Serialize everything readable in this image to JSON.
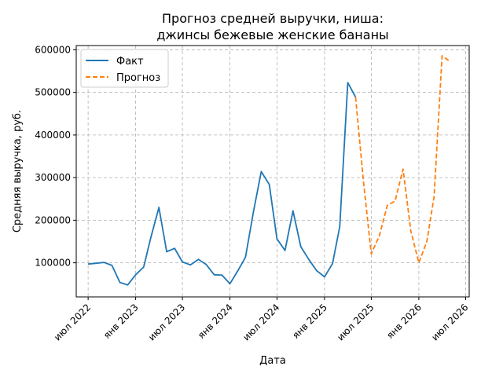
{
  "chart_data": {
    "type": "line",
    "title_line1": "Прогноз средней выручки, ниша:",
    "title_line2": "джинсы бежевые женские бананы",
    "xlabel": "Дата",
    "ylabel": "Средняя выручка, руб.",
    "ylim": [
      20000,
      610000
    ],
    "xlim": [
      "2022-05-16",
      "2026-07-15"
    ],
    "grid": true,
    "legend_position": "top-left",
    "x_ticks": [
      {
        "date": "2022-07-01",
        "label": "июл 2022"
      },
      {
        "date": "2023-01-01",
        "label": "янв 2023"
      },
      {
        "date": "2023-07-01",
        "label": "июл 2023"
      },
      {
        "date": "2024-01-01",
        "label": "янв 2024"
      },
      {
        "date": "2024-07-01",
        "label": "июл 2024"
      },
      {
        "date": "2025-01-01",
        "label": "янв 2025"
      },
      {
        "date": "2025-07-01",
        "label": "июл 2025"
      },
      {
        "date": "2026-01-01",
        "label": "янв 2026"
      },
      {
        "date": "2026-07-01",
        "label": "июл 2026"
      }
    ],
    "y_ticks": [
      100000,
      200000,
      300000,
      400000,
      500000,
      600000
    ],
    "series": [
      {
        "name": "Факт",
        "color": "#1f77b4",
        "style": "solid",
        "points": [
          [
            "2022-07-01",
            97000
          ],
          [
            "2022-08-01",
            99000
          ],
          [
            "2022-09-01",
            101000
          ],
          [
            "2022-10-01",
            94000
          ],
          [
            "2022-11-01",
            54000
          ],
          [
            "2022-12-01",
            48000
          ],
          [
            "2023-01-01",
            72000
          ],
          [
            "2023-02-01",
            90000
          ],
          [
            "2023-03-01",
            160000
          ],
          [
            "2023-04-01",
            230000
          ],
          [
            "2023-05-01",
            126000
          ],
          [
            "2023-06-01",
            134000
          ],
          [
            "2023-07-01",
            102000
          ],
          [
            "2023-08-01",
            95000
          ],
          [
            "2023-09-01",
            108000
          ],
          [
            "2023-10-01",
            96000
          ],
          [
            "2023-11-01",
            72000
          ],
          [
            "2023-12-01",
            71000
          ],
          [
            "2024-01-01",
            51000
          ],
          [
            "2024-02-01",
            82000
          ],
          [
            "2024-03-01",
            113000
          ],
          [
            "2024-04-01",
            220000
          ],
          [
            "2024-05-01",
            314000
          ],
          [
            "2024-06-01",
            284000
          ],
          [
            "2024-07-01",
            156000
          ],
          [
            "2024-08-01",
            129000
          ],
          [
            "2024-09-01",
            222000
          ],
          [
            "2024-10-01",
            138000
          ],
          [
            "2024-11-01",
            108000
          ],
          [
            "2024-12-01",
            82000
          ],
          [
            "2025-01-01",
            67000
          ],
          [
            "2025-02-01",
            98000
          ],
          [
            "2025-03-01",
            185000
          ],
          [
            "2025-04-01",
            523000
          ],
          [
            "2025-05-01",
            489000
          ]
        ]
      },
      {
        "name": "Прогноз",
        "color": "#ff7f0e",
        "style": "dashed",
        "points": [
          [
            "2025-05-01",
            489000
          ],
          [
            "2025-06-01",
            290000
          ],
          [
            "2025-07-01",
            121000
          ],
          [
            "2025-08-01",
            163000
          ],
          [
            "2025-09-01",
            235000
          ],
          [
            "2025-10-01",
            245000
          ],
          [
            "2025-11-01",
            320000
          ],
          [
            "2025-12-01",
            175000
          ],
          [
            "2026-01-01",
            100000
          ],
          [
            "2026-02-01",
            150000
          ],
          [
            "2026-03-01",
            255000
          ],
          [
            "2026-04-01",
            586000
          ],
          [
            "2026-05-01",
            573000
          ]
        ]
      }
    ]
  }
}
